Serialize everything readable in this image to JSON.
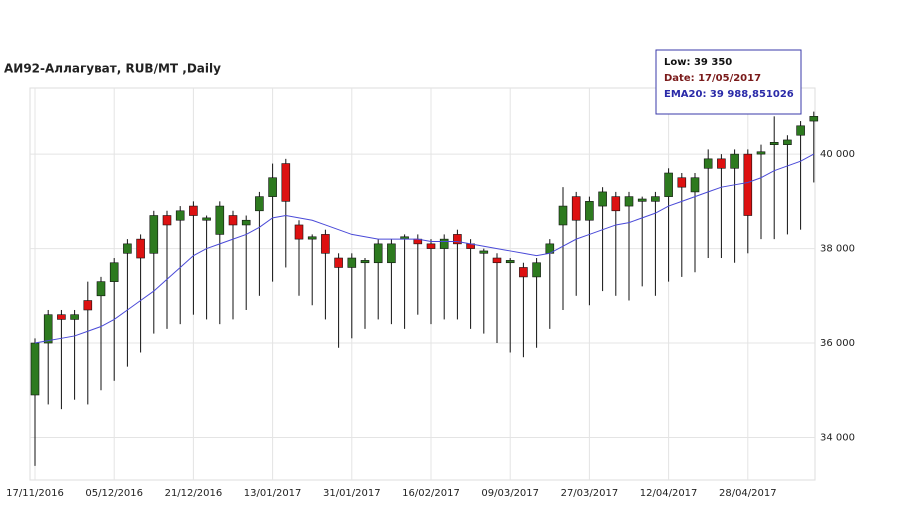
{
  "chart_data": {
    "type": "candlestick",
    "title": "АИ92-Аллагуват,  RUB/MT ,Daily",
    "tooltip": [
      "Low: 39 350",
      "Date: 17/05/2017",
      "EMA20: 39 988,851026"
    ],
    "categories": [
      "17/11/2016",
      null,
      null,
      null,
      null,
      null,
      "05/12/2016",
      null,
      null,
      null,
      null,
      null,
      "21/12/2016",
      null,
      null,
      null,
      null,
      null,
      "13/01/2017",
      null,
      null,
      null,
      null,
      null,
      "31/01/2017",
      null,
      null,
      null,
      null,
      null,
      "16/02/2017",
      null,
      null,
      null,
      null,
      null,
      "09/03/2017",
      null,
      null,
      null,
      null,
      null,
      "27/03/2017",
      null,
      null,
      null,
      null,
      null,
      "12/04/2017",
      null,
      null,
      null,
      null,
      null,
      "28/04/2017",
      null,
      null,
      null,
      null,
      null
    ],
    "open": [
      34900,
      36000,
      36600,
      36500,
      36900,
      37000,
      37300,
      37900,
      38200,
      37900,
      38700,
      38600,
      38900,
      38600,
      38300,
      38700,
      38500,
      38800,
      39100,
      39800,
      38500,
      38200,
      38300,
      37800,
      37600,
      37700,
      37700,
      37700,
      38200,
      38200,
      38100,
      38000,
      38300,
      38100,
      37900,
      37800,
      37700,
      37600,
      37400,
      37900,
      38500,
      39100,
      38600,
      38900,
      39100,
      38900,
      39000,
      39000,
      39100,
      39500,
      39200,
      39700,
      39900,
      39700,
      40000,
      40000,
      40200,
      40200,
      40400,
      40700
    ],
    "high": [
      36100,
      36700,
      36700,
      36700,
      37300,
      37400,
      37800,
      38200,
      38300,
      38800,
      38800,
      38900,
      39000,
      38700,
      39000,
      38800,
      38700,
      39200,
      39800,
      39900,
      38600,
      38300,
      38400,
      37900,
      37900,
      37800,
      38200,
      38200,
      38300,
      38300,
      38200,
      38300,
      38400,
      38200,
      38000,
      37900,
      37800,
      37700,
      37800,
      38200,
      39300,
      39200,
      39100,
      39300,
      39200,
      39200,
      39100,
      39200,
      39700,
      39600,
      39600,
      40100,
      40000,
      40100,
      40100,
      40200,
      40800,
      40400,
      40700,
      40900
    ],
    "low": [
      33400,
      34700,
      34600,
      34800,
      34700,
      35000,
      35200,
      35500,
      35800,
      36200,
      36300,
      36400,
      36600,
      36500,
      36400,
      36500,
      36700,
      37000,
      37300,
      37600,
      37000,
      36800,
      36500,
      35900,
      36100,
      36300,
      36500,
      36400,
      36300,
      36600,
      36400,
      36500,
      36500,
      36300,
      36200,
      36000,
      35800,
      35700,
      35900,
      36300,
      36700,
      37000,
      36800,
      37100,
      37000,
      36900,
      37200,
      37000,
      37300,
      37400,
      37500,
      37800,
      37800,
      37700,
      37900,
      38200,
      38200,
      38300,
      38400,
      39400
    ],
    "close": [
      36000,
      36600,
      36500,
      36600,
      36700,
      37300,
      37700,
      38100,
      37800,
      38700,
      38500,
      38800,
      38700,
      38650,
      38900,
      38500,
      38600,
      39100,
      39500,
      39000,
      38200,
      38250,
      37900,
      37600,
      37800,
      37750,
      38100,
      38100,
      38250,
      38100,
      38000,
      38200,
      38100,
      38000,
      37950,
      37700,
      37750,
      37400,
      37700,
      38100,
      38900,
      38600,
      39000,
      39200,
      38800,
      39100,
      39050,
      39100,
      39600,
      39300,
      39500,
      39900,
      39700,
      40000,
      38700,
      40050,
      40250,
      40300,
      40600,
      40800
    ],
    "up_color": "#2d7a1f",
    "down_color": "#dd1111",
    "lines": [
      {
        "color": "#4a4ad8",
        "values": [
          36000,
          36050,
          36100,
          36150,
          36250,
          36350,
          36500,
          36700,
          36900,
          37100,
          37350,
          37600,
          37850,
          38000,
          38100,
          38200,
          38300,
          38450,
          38650,
          38700,
          38650,
          38600,
          38500,
          38400,
          38300,
          38250,
          38200,
          38200,
          38200,
          38200,
          38150,
          38150,
          38150,
          38100,
          38050,
          38000,
          37950,
          37900,
          37850,
          37900,
          38050,
          38200,
          38300,
          38400,
          38500,
          38550,
          38650,
          38750,
          38900,
          39000,
          39100,
          39200,
          39300,
          39350,
          39400,
          39500,
          39650,
          39750,
          39850,
          40000
        ]
      }
    ],
    "ylim": [
      33100,
      41400
    ],
    "yticks": [
      {
        "value": 34000,
        "label": "34 000"
      },
      {
        "value": 36000,
        "label": "36 000"
      },
      {
        "value": 38000,
        "label": "38 000"
      },
      {
        "value": 40000,
        "label": "40 000"
      }
    ],
    "grid": true
  }
}
